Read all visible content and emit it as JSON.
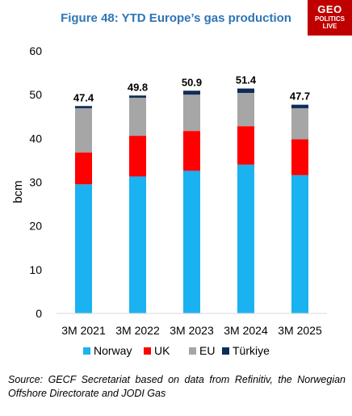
{
  "title": "Figure 48: YTD Europe’s gas production",
  "logo": {
    "line1": "GEO",
    "line2": "POLITICS",
    "line3": "LIVE"
  },
  "source": "Source: GECF Secretariat based on data from Refinitiv, the Norwegian Offshore Directorate and JODI Gas",
  "colors": {
    "Norway": "#1ab2f0",
    "UK": "#ff0000",
    "EU": "#a6a6a6",
    "Türkiye": "#0e2c5a",
    "title": "#2e75b6",
    "logo": "#c00000"
  },
  "chart_data": {
    "type": "bar",
    "stacked": true,
    "categories": [
      "3M 2021",
      "3M 2022",
      "3M 2023",
      "3M 2024",
      "3M 2025"
    ],
    "series": [
      {
        "name": "Norway",
        "values": [
          29.5,
          31.3,
          32.6,
          34.0,
          31.6
        ]
      },
      {
        "name": "UK",
        "values": [
          7.3,
          9.3,
          9.1,
          8.8,
          8.2
        ]
      },
      {
        "name": "EU",
        "values": [
          10.1,
          8.7,
          8.3,
          7.6,
          7.1
        ]
      },
      {
        "name": "Türkiye",
        "values": [
          0.5,
          0.5,
          0.9,
          1.0,
          0.8
        ]
      }
    ],
    "totals": [
      "47.4",
      "49.8",
      "50.9",
      "51.4",
      "47.7"
    ],
    "ylabel": "bcm",
    "xlabel": "",
    "ylim": [
      0,
      60
    ],
    "yticks": [
      0,
      10,
      20,
      30,
      40,
      50,
      60
    ],
    "grid": false,
    "legend_position": "bottom"
  }
}
